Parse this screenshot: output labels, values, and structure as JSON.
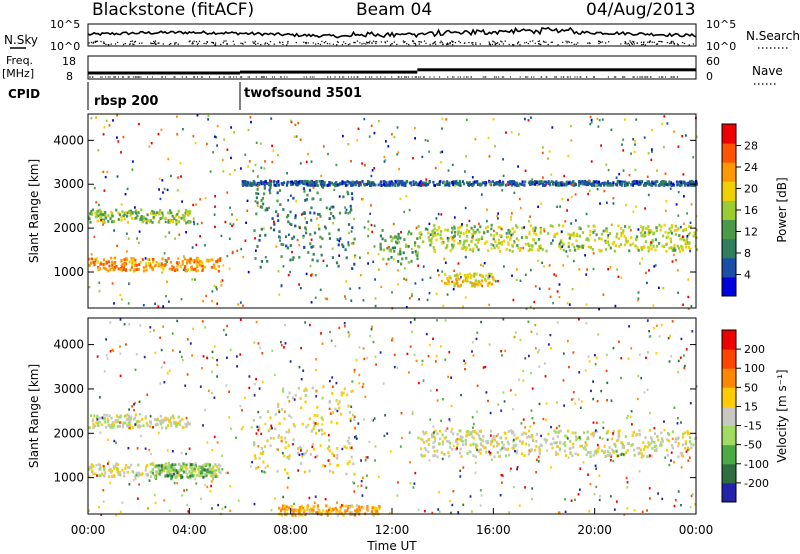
{
  "header": {
    "station": "Blackstone (fitACF)",
    "beam": "Beam 04",
    "date": "04/Aug/2013"
  },
  "top_panels": {
    "nsky_label": "N.Sky",
    "nsearch_label": "N.Search",
    "count_ticks": [
      "10^5",
      "10^0"
    ],
    "freq_label": "Freq.",
    "freq_unit": "[MHz]",
    "freq_ticks": [
      "18",
      "8"
    ],
    "nave_label": "Nave",
    "nave_ticks": [
      "60",
      "0"
    ],
    "cpid_label": "CPID",
    "cpid_segments": [
      {
        "name": "rbsp 200",
        "start_hour": 0,
        "end_hour": 6
      },
      {
        "name": "twofsound 3501",
        "start_hour": 6,
        "end_hour": 24
      }
    ],
    "freq_mhz": [
      {
        "start_hour": 0,
        "end_hour": 6,
        "value": 10.6
      },
      {
        "start_hour": 6,
        "end_hour": 13,
        "value": 11.0
      },
      {
        "start_hour": 13,
        "end_hour": 24,
        "value": 12.0
      }
    ]
  },
  "power_colorbar": {
    "label": "Power [dB]",
    "ticks": [
      "28",
      "24",
      "20",
      "16",
      "12",
      "8",
      "4"
    ],
    "colors": [
      "#0000dd",
      "#1a4fa8",
      "#2f7f5f",
      "#4a9a4a",
      "#9acd32",
      "#f0d000",
      "#ff9900",
      "#ff5500",
      "#ee0000"
    ]
  },
  "velocity_colorbar": {
    "label": "Velocity [m s⁻¹]",
    "ticks": [
      "200",
      "100",
      "50",
      "15",
      "-15",
      "-50",
      "-100",
      "-200"
    ],
    "colors": [
      "#2222aa",
      "#2f6f3f",
      "#4aaa44",
      "#9fdc60",
      "#c8c8c0",
      "#ffcc00",
      "#ff8800",
      "#ff4400",
      "#ee0000"
    ]
  },
  "chart_data": [
    {
      "type": "heatmap",
      "panel": "power",
      "ylabel": "Slant Range [km]",
      "yticks": [
        1000,
        2000,
        3000,
        4000
      ],
      "ylim": [
        180,
        4600
      ],
      "xlim": [
        0,
        24
      ],
      "clim": [
        0,
        30
      ],
      "bands": [
        {
          "t0": 0.0,
          "t1": 5.2,
          "r0": 1050,
          "r1": 1350,
          "v": 22
        },
        {
          "t0": 0.0,
          "t1": 4.0,
          "r0": 2150,
          "r1": 2450,
          "v": 14
        },
        {
          "t0": 6.5,
          "t1": 10.5,
          "r0": 1100,
          "r1": 3100,
          "v": 8
        },
        {
          "t0": 11.5,
          "t1": 13.0,
          "r0": 1200,
          "r1": 2000,
          "v": 12
        },
        {
          "t0": 13.0,
          "t1": 24.0,
          "r0": 1500,
          "r1": 2100,
          "v": 16
        },
        {
          "t0": 14.0,
          "t1": 16.0,
          "r0": 700,
          "r1": 1000,
          "v": 18
        },
        {
          "t0": 6.0,
          "t1": 24.0,
          "r0": 3000,
          "r1": 3100,
          "v": 6
        }
      ]
    },
    {
      "type": "heatmap",
      "panel": "velocity",
      "ylabel": "Slant Range [km]",
      "xlabel": "Time UT",
      "xticks": [
        "00:00",
        "04:00",
        "08:00",
        "12:00",
        "16:00",
        "20:00",
        "00:00"
      ],
      "yticks": [
        1000,
        2000,
        3000,
        4000
      ],
      "ylim": [
        180,
        4600
      ],
      "xlim": [
        0,
        24
      ],
      "clim": [
        -200,
        200
      ],
      "bands": [
        {
          "t0": 0.0,
          "t1": 5.2,
          "r0": 1050,
          "r1": 1350,
          "v": 0
        },
        {
          "t0": 2.5,
          "t1": 5.0,
          "r0": 1000,
          "r1": 1350,
          "v": -80
        },
        {
          "t0": 0.0,
          "t1": 4.0,
          "r0": 2150,
          "r1": 2450,
          "v": 0
        },
        {
          "t0": 6.5,
          "t1": 10.5,
          "r0": 1100,
          "r1": 3100,
          "v": 20
        },
        {
          "t0": 13.0,
          "t1": 24.0,
          "r0": 1500,
          "r1": 2100,
          "v": 0
        },
        {
          "t0": 7.5,
          "t1": 11.5,
          "r0": 180,
          "r1": 400,
          "v": 60
        }
      ]
    }
  ]
}
